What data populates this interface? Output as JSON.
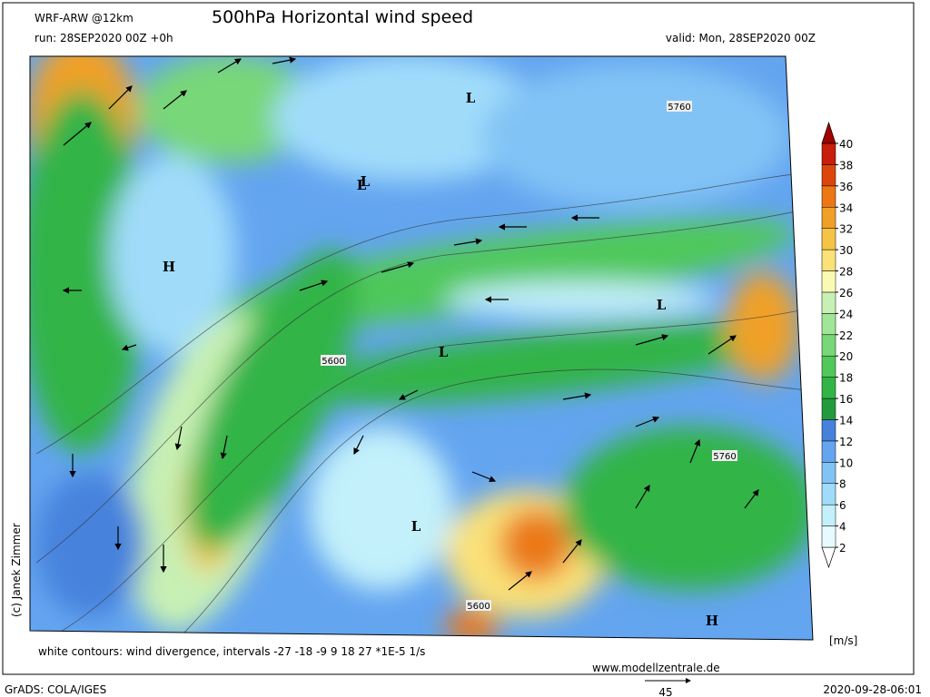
{
  "header": {
    "model": "WRF-ARW @12km",
    "title": "500hPa Horizontal wind speed",
    "run": "run: 28SEP2020 00Z +0h",
    "valid": "valid: Mon, 28SEP2020 00Z"
  },
  "map": {
    "labels": [
      "L",
      "L",
      "L",
      "L",
      "L",
      "L",
      "H",
      "H",
      "5760",
      "5600",
      "5760",
      "5600"
    ]
  },
  "colorbar": {
    "levels": [
      2,
      4,
      6,
      8,
      10,
      12,
      14,
      16,
      18,
      20,
      22,
      24,
      26,
      28,
      30,
      32,
      34,
      36,
      38,
      40
    ],
    "colors": [
      "#ffffff",
      "#e6faff",
      "#c3f0fa",
      "#a0dcfa",
      "#82c3f5",
      "#64a5f0",
      "#4682dc",
      "#239b3c",
      "#32b446",
      "#50c85a",
      "#78d778",
      "#a0e696",
      "#c8f0b4",
      "#fafab4",
      "#fae178",
      "#f5c346",
      "#f0a028",
      "#eb7814",
      "#dc460a",
      "#c81e0a",
      "#a00000"
    ],
    "unit": "[m/s]"
  },
  "footer": {
    "note": "white contours: wind divergence, intervals -27 -18 -9 9 18 27 *1E-5 1/s",
    "site": "www.modellzentrale.de",
    "credit": "(c) Janek Zimmer",
    "software": "GrADS: COLA/IGES",
    "timestamp": "2020-09-28-06:01",
    "arrow_scale": "45"
  }
}
